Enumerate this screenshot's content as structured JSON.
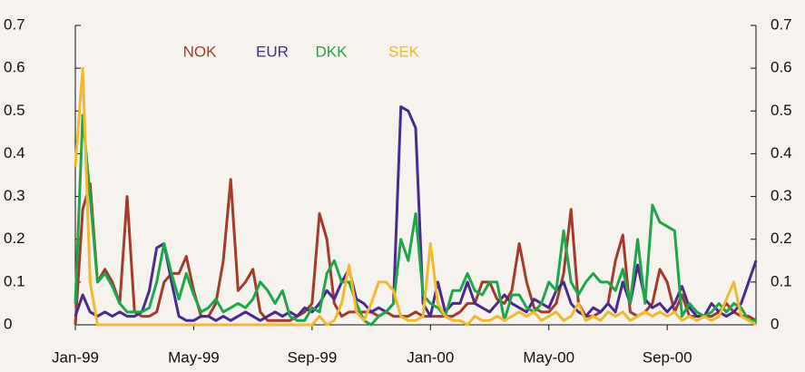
{
  "chart_data": {
    "type": "line",
    "x": [
      0,
      0.25,
      0.5,
      0.75,
      1,
      1.25,
      1.5,
      1.75,
      2,
      2.25,
      2.5,
      2.75,
      3,
      3.25,
      3.5,
      3.75,
      4,
      4.25,
      4.5,
      4.75,
      5,
      5.25,
      5.5,
      5.75,
      6,
      6.25,
      6.5,
      6.75,
      7,
      7.25,
      7.5,
      7.75,
      8,
      8.25,
      8.5,
      8.75,
      9,
      9.25,
      9.5,
      9.75,
      10,
      10.25,
      10.5,
      10.75,
      11,
      11.25,
      11.5,
      11.75,
      12,
      12.25,
      12.5,
      12.75,
      13,
      13.25,
      13.5,
      13.75,
      14,
      14.25,
      14.5,
      14.75,
      15,
      15.25,
      15.5,
      15.75,
      16,
      16.25,
      16.5,
      16.75,
      17,
      17.25,
      17.5,
      17.75,
      18,
      18.25,
      18.5,
      18.75,
      19,
      19.25,
      19.5,
      19.75,
      20,
      20.25,
      20.5,
      20.75,
      21,
      21.25,
      21.5,
      21.75,
      22,
      22.25,
      22.5,
      22.75,
      23
    ],
    "series": [
      {
        "name": "NOK",
        "color": "#a33a2a",
        "values": [
          0,
          0.27,
          0.33,
          0.1,
          0.13,
          0.1,
          0.05,
          0.3,
          0.03,
          0.02,
          0.02,
          0.03,
          0.1,
          0.12,
          0.12,
          0.16,
          0.08,
          0.02,
          0.02,
          0.05,
          0.15,
          0.34,
          0.08,
          0.1,
          0.13,
          0.03,
          0.01,
          0.01,
          0.01,
          0.01,
          0.02,
          0.03,
          0.05,
          0.26,
          0.2,
          0.05,
          0.02,
          0.03,
          0.03,
          0.03,
          0.03,
          0.02,
          0.03,
          0.02,
          0.02,
          0.02,
          0.03,
          0.02,
          0.02,
          0.02,
          0.02,
          0.02,
          0.03,
          0.05,
          0.05,
          0.1,
          0.1,
          0.06,
          0.05,
          0.08,
          0.19,
          0.1,
          0.04,
          0.03,
          0.03,
          0.05,
          0.12,
          0.27,
          0.05,
          0.02,
          0.02,
          0.03,
          0.05,
          0.15,
          0.21,
          0.03,
          0.02,
          0.03,
          0.05,
          0.13,
          0.1,
          0.03,
          0.07,
          0.02,
          0.02,
          0.02,
          0.02,
          0.03,
          0.05,
          0.03,
          0.02,
          0.02,
          0.01
        ]
      },
      {
        "name": "EUR",
        "color": "#4a2a8e",
        "values": [
          0.02,
          0.07,
          0.03,
          0.02,
          0.03,
          0.02,
          0.03,
          0.02,
          0.02,
          0.03,
          0.08,
          0.18,
          0.19,
          0.1,
          0.02,
          0.01,
          0.01,
          0.02,
          0.02,
          0.01,
          0.02,
          0.01,
          0.02,
          0.03,
          0.02,
          0.01,
          0.02,
          0.03,
          0.02,
          0.03,
          0.02,
          0.04,
          0.03,
          0.05,
          0.08,
          0.06,
          0.1,
          0.13,
          0.06,
          0.05,
          0.03,
          0.04,
          0.03,
          0.05,
          0.51,
          0.5,
          0.46,
          0.05,
          0.02,
          0.1,
          0.03,
          0.05,
          0.05,
          0.1,
          0.05,
          0.04,
          0.03,
          0.05,
          0.07,
          0.05,
          0.04,
          0.03,
          0.06,
          0.05,
          0.04,
          0.08,
          0.1,
          0.05,
          0.03,
          0.02,
          0.04,
          0.03,
          0.05,
          0.03,
          0.1,
          0.05,
          0.14,
          0.06,
          0.04,
          0.05,
          0.03,
          0.05,
          0.09,
          0.04,
          0.02,
          0.02,
          0.05,
          0.03,
          0.02,
          0.03,
          0.05,
          0.1,
          0.15
        ]
      },
      {
        "name": "DKK",
        "color": "#1ea64b",
        "values": [
          0.05,
          0.49,
          0.3,
          0.1,
          0.12,
          0.09,
          0.05,
          0.03,
          0.03,
          0.03,
          0.04,
          0.1,
          0.19,
          0.12,
          0.06,
          0.12,
          0.07,
          0.03,
          0.04,
          0.06,
          0.03,
          0.04,
          0.05,
          0.04,
          0.06,
          0.1,
          0.08,
          0.05,
          0.08,
          0.02,
          0.01,
          0.01,
          0.04,
          0.03,
          0.12,
          0.15,
          0.1,
          0.1,
          0.05,
          0.01,
          0,
          0.02,
          0.03,
          0.05,
          0.2,
          0.15,
          0.26,
          0.07,
          0.05,
          0.04,
          0.02,
          0.08,
          0.08,
          0.12,
          0.08,
          0.07,
          0.1,
          0.1,
          0.01,
          0.07,
          0.07,
          0.04,
          0.03,
          0.05,
          0.1,
          0.08,
          0.22,
          0.1,
          0.07,
          0.1,
          0.12,
          0.1,
          0.1,
          0.08,
          0.13,
          0.05,
          0.2,
          0.05,
          0.28,
          0.24,
          0.23,
          0.22,
          0.02,
          0.05,
          0.03,
          0.02,
          0.03,
          0.05,
          0.03,
          0.05,
          0.04,
          0.01,
          0.01
        ]
      },
      {
        "name": "SEK",
        "color": "#f2b82e",
        "values": [
          0.37,
          0.6,
          0.1,
          0,
          0,
          0,
          0,
          0,
          0,
          0,
          0,
          0,
          0,
          0,
          0,
          0,
          0,
          0,
          0,
          0,
          0,
          0,
          0,
          0,
          0,
          0,
          0,
          0,
          0,
          0,
          0,
          0,
          0,
          0.02,
          0,
          0.01,
          0.05,
          0.14,
          0.03,
          0.01,
          0.05,
          0.1,
          0.1,
          0.08,
          0.02,
          0.01,
          0.01,
          0.02,
          0.19,
          0.05,
          0.02,
          0.01,
          0.01,
          0,
          0.02,
          0.01,
          0.01,
          0.02,
          0.01,
          0.02,
          0.03,
          0.02,
          0.03,
          0.01,
          0.02,
          0.03,
          0.01,
          0.02,
          0.05,
          0.01,
          0.02,
          0.01,
          0.03,
          0.02,
          0.03,
          0.01,
          0.02,
          0.03,
          0.02,
          0.03,
          0.02,
          0.03,
          0.01,
          0.02,
          0.01,
          0.02,
          0.01,
          0.02,
          0.06,
          0.1,
          0.02,
          0.01,
          0
        ]
      }
    ],
    "xlim": [
      0,
      23
    ],
    "xticks": [
      {
        "value": 0,
        "label": "Jan-99"
      },
      {
        "value": 4,
        "label": "May-99"
      },
      {
        "value": 8,
        "label": "Sep-99"
      },
      {
        "value": 12,
        "label": "Jan-00"
      },
      {
        "value": 16,
        "label": "May-00"
      },
      {
        "value": 20,
        "label": "Sep-00"
      }
    ],
    "ylim": [
      0,
      0.7
    ],
    "yticks": [
      0,
      0.1,
      0.2,
      0.3,
      0.4,
      0.5,
      0.6,
      0.7
    ],
    "y2lim": [
      0,
      0.7
    ],
    "y2ticks": [
      0,
      0.1,
      0.2,
      0.3,
      0.4,
      0.5,
      0.6,
      0.7
    ]
  }
}
